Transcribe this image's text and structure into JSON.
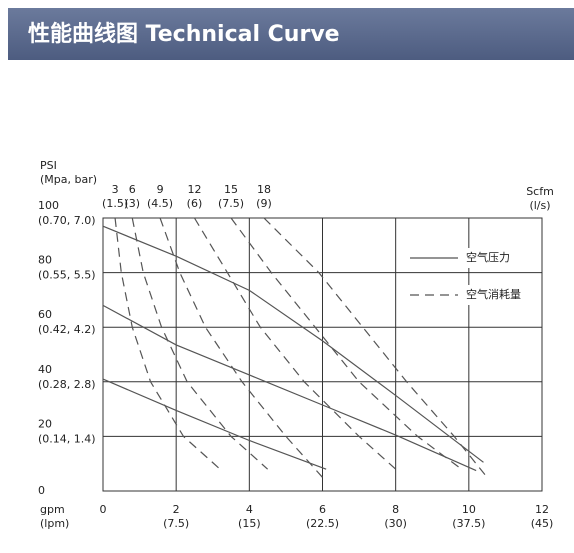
{
  "chart_data": {
    "type": "line",
    "title": "性能曲线图 Technical Curve",
    "y_label": "PSI",
    "y_label_sub": "(Mpa, bar)",
    "x_label": "gpm",
    "x_label_sub": "(lpm)",
    "top_label": "Scfm",
    "top_label_sub": "(l/s)",
    "xlim": [
      0,
      12
    ],
    "ylim": [
      0,
      100
    ],
    "xticks": [
      0,
      2,
      4,
      6,
      8,
      10,
      12
    ],
    "xtick_sub": [
      null,
      "(7.5)",
      "(15)",
      "(22.5)",
      "(30)",
      "(37.5)",
      "(45)"
    ],
    "yticks": [
      0,
      20,
      40,
      60,
      80,
      100
    ],
    "ytick_sub": [
      null,
      "(0.14, 1.4)",
      "(0.28, 2.8)",
      "(0.42, 4.2)",
      "(0.55, 5.5)",
      "(0.70, 7.0)"
    ],
    "grid": true,
    "color": "#555555",
    "legend": [
      {
        "label": "空气压力",
        "style": "solid"
      },
      {
        "label": "空气消耗量",
        "style": "dashed"
      }
    ],
    "series": [
      {
        "style": "solid",
        "x": [
          0,
          2,
          4,
          6,
          8,
          10.4
        ],
        "values": [
          97,
          86,
          73.5,
          55,
          35,
          10.5
        ]
      },
      {
        "style": "solid",
        "x": [
          0,
          2,
          4,
          6,
          8,
          10.2
        ],
        "values": [
          68,
          53.5,
          42.5,
          31.5,
          20.5,
          7.5
        ]
      },
      {
        "style": "solid",
        "x": [
          0,
          2,
          4,
          6.1
        ],
        "values": [
          41,
          29.5,
          18.5,
          8
        ]
      },
      {
        "style": "dashed",
        "name": "3",
        "name_sub": "(1.5)",
        "x": [
          0.33,
          0.5,
          0.8,
          1.3,
          2.2,
          3.2
        ],
        "values": [
          100,
          80,
          60,
          40,
          20,
          8
        ]
      },
      {
        "style": "dashed",
        "name": "6",
        "name_sub": "(3)",
        "x": [
          0.8,
          1.1,
          1.6,
          2.3,
          3.5,
          4.5
        ],
        "values": [
          100,
          80,
          60,
          40,
          20,
          8
        ]
      },
      {
        "style": "dashed",
        "name": "9",
        "name_sub": "(4.5)",
        "x": [
          1.56,
          2.1,
          2.8,
          3.8,
          5.0,
          6.0
        ],
        "values": [
          100,
          80,
          60,
          40,
          20,
          5
        ]
      },
      {
        "style": "dashed",
        "name": "12",
        "name_sub": "(6)",
        "x": [
          2.5,
          3.4,
          4.3,
          5.5,
          7.0,
          8.0
        ],
        "values": [
          100,
          80,
          60,
          40,
          20,
          8
        ]
      },
      {
        "style": "dashed",
        "name": "15",
        "name_sub": "(7.5)",
        "x": [
          3.5,
          4.6,
          5.8,
          7.0,
          8.6,
          9.8
        ],
        "values": [
          100,
          80,
          60,
          40,
          20,
          8
        ]
      },
      {
        "style": "dashed",
        "name": "18",
        "name_sub": "(9)",
        "x": [
          4.4,
          5.9,
          7.1,
          8.3,
          9.6,
          10.5
        ],
        "values": [
          100,
          80,
          60,
          40,
          20,
          5
        ]
      }
    ]
  }
}
